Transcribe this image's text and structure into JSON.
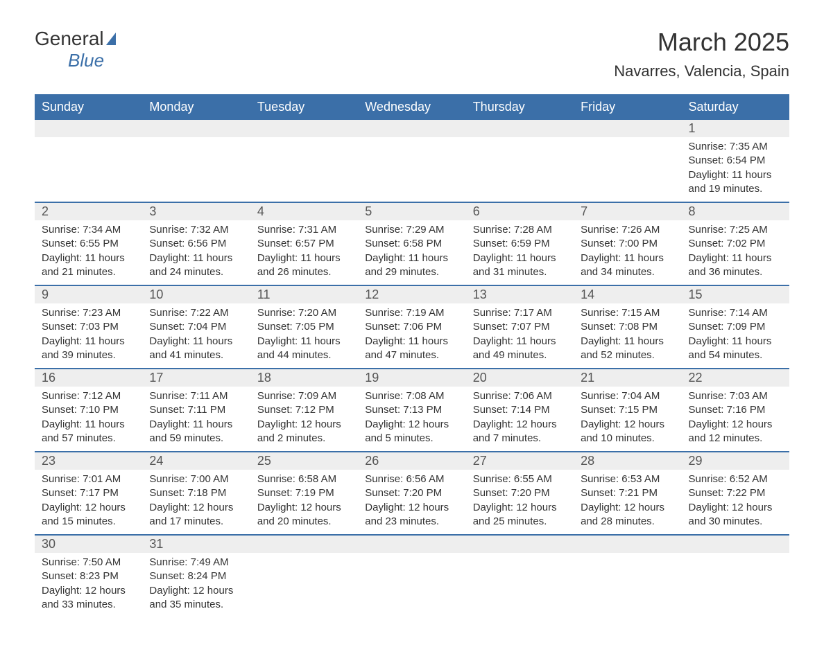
{
  "logo": {
    "general": "General",
    "blue": "Blue"
  },
  "title": "March 2025",
  "location": "Navarres, Valencia, Spain",
  "day_headers": [
    "Sunday",
    "Monday",
    "Tuesday",
    "Wednesday",
    "Thursday",
    "Friday",
    "Saturday"
  ],
  "colors": {
    "header_bg": "#3b6fa8",
    "header_text": "#ffffff",
    "day_number_bg": "#eeeeee",
    "border": "#3b6fa8",
    "text": "#333333",
    "logo_blue": "#3b6fa8"
  },
  "weeks": [
    [
      {
        "day": "",
        "sunrise": "",
        "sunset": "",
        "daylight": ""
      },
      {
        "day": "",
        "sunrise": "",
        "sunset": "",
        "daylight": ""
      },
      {
        "day": "",
        "sunrise": "",
        "sunset": "",
        "daylight": ""
      },
      {
        "day": "",
        "sunrise": "",
        "sunset": "",
        "daylight": ""
      },
      {
        "day": "",
        "sunrise": "",
        "sunset": "",
        "daylight": ""
      },
      {
        "day": "",
        "sunrise": "",
        "sunset": "",
        "daylight": ""
      },
      {
        "day": "1",
        "sunrise": "Sunrise: 7:35 AM",
        "sunset": "Sunset: 6:54 PM",
        "daylight": "Daylight: 11 hours and 19 minutes."
      }
    ],
    [
      {
        "day": "2",
        "sunrise": "Sunrise: 7:34 AM",
        "sunset": "Sunset: 6:55 PM",
        "daylight": "Daylight: 11 hours and 21 minutes."
      },
      {
        "day": "3",
        "sunrise": "Sunrise: 7:32 AM",
        "sunset": "Sunset: 6:56 PM",
        "daylight": "Daylight: 11 hours and 24 minutes."
      },
      {
        "day": "4",
        "sunrise": "Sunrise: 7:31 AM",
        "sunset": "Sunset: 6:57 PM",
        "daylight": "Daylight: 11 hours and 26 minutes."
      },
      {
        "day": "5",
        "sunrise": "Sunrise: 7:29 AM",
        "sunset": "Sunset: 6:58 PM",
        "daylight": "Daylight: 11 hours and 29 minutes."
      },
      {
        "day": "6",
        "sunrise": "Sunrise: 7:28 AM",
        "sunset": "Sunset: 6:59 PM",
        "daylight": "Daylight: 11 hours and 31 minutes."
      },
      {
        "day": "7",
        "sunrise": "Sunrise: 7:26 AM",
        "sunset": "Sunset: 7:00 PM",
        "daylight": "Daylight: 11 hours and 34 minutes."
      },
      {
        "day": "8",
        "sunrise": "Sunrise: 7:25 AM",
        "sunset": "Sunset: 7:02 PM",
        "daylight": "Daylight: 11 hours and 36 minutes."
      }
    ],
    [
      {
        "day": "9",
        "sunrise": "Sunrise: 7:23 AM",
        "sunset": "Sunset: 7:03 PM",
        "daylight": "Daylight: 11 hours and 39 minutes."
      },
      {
        "day": "10",
        "sunrise": "Sunrise: 7:22 AM",
        "sunset": "Sunset: 7:04 PM",
        "daylight": "Daylight: 11 hours and 41 minutes."
      },
      {
        "day": "11",
        "sunrise": "Sunrise: 7:20 AM",
        "sunset": "Sunset: 7:05 PM",
        "daylight": "Daylight: 11 hours and 44 minutes."
      },
      {
        "day": "12",
        "sunrise": "Sunrise: 7:19 AM",
        "sunset": "Sunset: 7:06 PM",
        "daylight": "Daylight: 11 hours and 47 minutes."
      },
      {
        "day": "13",
        "sunrise": "Sunrise: 7:17 AM",
        "sunset": "Sunset: 7:07 PM",
        "daylight": "Daylight: 11 hours and 49 minutes."
      },
      {
        "day": "14",
        "sunrise": "Sunrise: 7:15 AM",
        "sunset": "Sunset: 7:08 PM",
        "daylight": "Daylight: 11 hours and 52 minutes."
      },
      {
        "day": "15",
        "sunrise": "Sunrise: 7:14 AM",
        "sunset": "Sunset: 7:09 PM",
        "daylight": "Daylight: 11 hours and 54 minutes."
      }
    ],
    [
      {
        "day": "16",
        "sunrise": "Sunrise: 7:12 AM",
        "sunset": "Sunset: 7:10 PM",
        "daylight": "Daylight: 11 hours and 57 minutes."
      },
      {
        "day": "17",
        "sunrise": "Sunrise: 7:11 AM",
        "sunset": "Sunset: 7:11 PM",
        "daylight": "Daylight: 11 hours and 59 minutes."
      },
      {
        "day": "18",
        "sunrise": "Sunrise: 7:09 AM",
        "sunset": "Sunset: 7:12 PM",
        "daylight": "Daylight: 12 hours and 2 minutes."
      },
      {
        "day": "19",
        "sunrise": "Sunrise: 7:08 AM",
        "sunset": "Sunset: 7:13 PM",
        "daylight": "Daylight: 12 hours and 5 minutes."
      },
      {
        "day": "20",
        "sunrise": "Sunrise: 7:06 AM",
        "sunset": "Sunset: 7:14 PM",
        "daylight": "Daylight: 12 hours and 7 minutes."
      },
      {
        "day": "21",
        "sunrise": "Sunrise: 7:04 AM",
        "sunset": "Sunset: 7:15 PM",
        "daylight": "Daylight: 12 hours and 10 minutes."
      },
      {
        "day": "22",
        "sunrise": "Sunrise: 7:03 AM",
        "sunset": "Sunset: 7:16 PM",
        "daylight": "Daylight: 12 hours and 12 minutes."
      }
    ],
    [
      {
        "day": "23",
        "sunrise": "Sunrise: 7:01 AM",
        "sunset": "Sunset: 7:17 PM",
        "daylight": "Daylight: 12 hours and 15 minutes."
      },
      {
        "day": "24",
        "sunrise": "Sunrise: 7:00 AM",
        "sunset": "Sunset: 7:18 PM",
        "daylight": "Daylight: 12 hours and 17 minutes."
      },
      {
        "day": "25",
        "sunrise": "Sunrise: 6:58 AM",
        "sunset": "Sunset: 7:19 PM",
        "daylight": "Daylight: 12 hours and 20 minutes."
      },
      {
        "day": "26",
        "sunrise": "Sunrise: 6:56 AM",
        "sunset": "Sunset: 7:20 PM",
        "daylight": "Daylight: 12 hours and 23 minutes."
      },
      {
        "day": "27",
        "sunrise": "Sunrise: 6:55 AM",
        "sunset": "Sunset: 7:20 PM",
        "daylight": "Daylight: 12 hours and 25 minutes."
      },
      {
        "day": "28",
        "sunrise": "Sunrise: 6:53 AM",
        "sunset": "Sunset: 7:21 PM",
        "daylight": "Daylight: 12 hours and 28 minutes."
      },
      {
        "day": "29",
        "sunrise": "Sunrise: 6:52 AM",
        "sunset": "Sunset: 7:22 PM",
        "daylight": "Daylight: 12 hours and 30 minutes."
      }
    ],
    [
      {
        "day": "30",
        "sunrise": "Sunrise: 7:50 AM",
        "sunset": "Sunset: 8:23 PM",
        "daylight": "Daylight: 12 hours and 33 minutes."
      },
      {
        "day": "31",
        "sunrise": "Sunrise: 7:49 AM",
        "sunset": "Sunset: 8:24 PM",
        "daylight": "Daylight: 12 hours and 35 minutes."
      },
      {
        "day": "",
        "sunrise": "",
        "sunset": "",
        "daylight": ""
      },
      {
        "day": "",
        "sunrise": "",
        "sunset": "",
        "daylight": ""
      },
      {
        "day": "",
        "sunrise": "",
        "sunset": "",
        "daylight": ""
      },
      {
        "day": "",
        "sunrise": "",
        "sunset": "",
        "daylight": ""
      },
      {
        "day": "",
        "sunrise": "",
        "sunset": "",
        "daylight": ""
      }
    ]
  ]
}
